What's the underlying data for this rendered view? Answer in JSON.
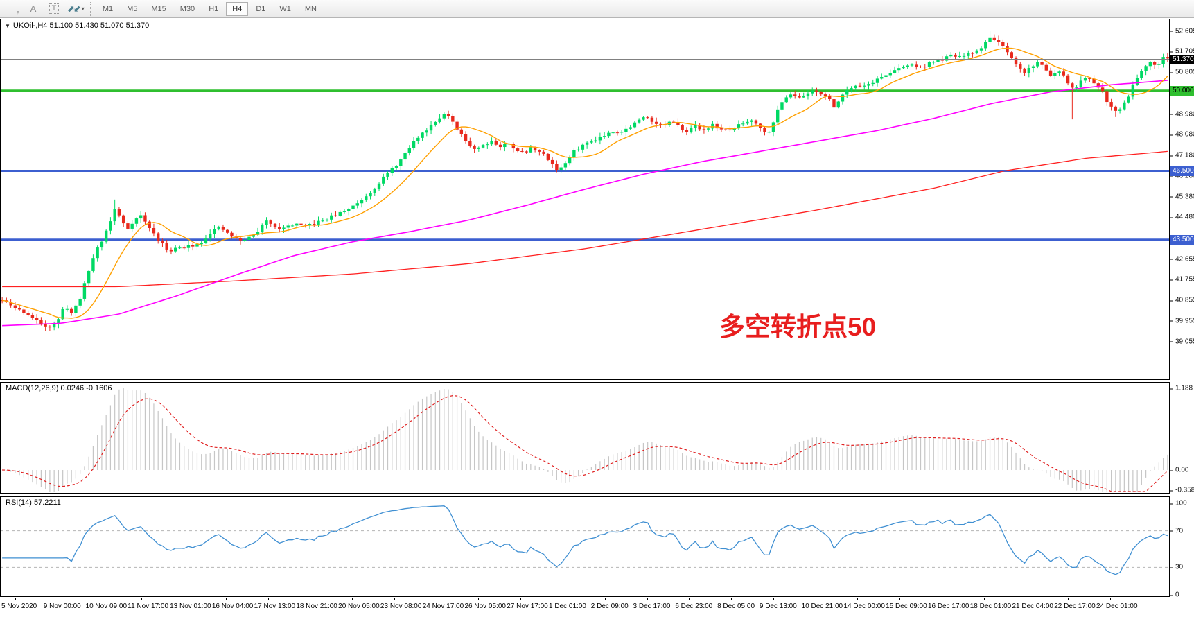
{
  "toolbar": {
    "icons": [
      {
        "name": "dotted-grid",
        "sub": "F"
      },
      {
        "name": "text-label",
        "glyph": "A"
      },
      {
        "name": "text-box",
        "glyph": "T"
      },
      {
        "name": "cycle-arrows",
        "glyph": "⬈⬋"
      },
      {
        "name": "dropdown",
        "glyph": "▾"
      }
    ],
    "timeframes": [
      "M1",
      "M5",
      "M15",
      "M30",
      "H1",
      "H4",
      "D1",
      "W1",
      "MN"
    ],
    "active_timeframe": "H4"
  },
  "header": {
    "symbol_line": "UKOil-,H4  51.100 51.430 51.070 51.370",
    "dropdown_glyph": "▼"
  },
  "annotation": {
    "text": "多空转折点50",
    "color": "#e81e1e"
  },
  "panels": {
    "macd": {
      "label": "MACD(12,26,9) 0.0246 -0.1606"
    },
    "rsi": {
      "label": "RSI(14) 57.2211"
    }
  },
  "chart_data": {
    "type": "candlestick",
    "symbol": "UKOil-",
    "timeframe": "H4",
    "ohlc_display": {
      "open": "51.100",
      "high": "51.430",
      "low": "51.070",
      "close": "51.370"
    },
    "current_price": 51.37,
    "candles": 270,
    "colors": {
      "up": "#00d964",
      "down": "#e8291d",
      "ma_fast": "#ffa000",
      "ma_mid": "#ff00ff",
      "ma_slow": "#ff2020",
      "macd_hist": "#c6c6c6",
      "macd_signal": "#e02020",
      "rsi_line": "#3f8fd2",
      "level_dash": "#b5b5b5",
      "current_line": "#808080"
    },
    "y_axis_ticks": [
      "52.605",
      "51.705",
      "50.805",
      "48.980",
      "48.080",
      "47.180",
      "46.280",
      "45.380",
      "44.480",
      "42.655",
      "41.755",
      "40.855",
      "39.955",
      "39.055"
    ],
    "hlines": [
      {
        "price": 51.37,
        "label": "51.370",
        "color": "#808080",
        "width": 1,
        "layer": "over",
        "badge_bg": "#000000",
        "badge_fg": "#ffffff"
      },
      {
        "price": 50.0,
        "label": "50.000",
        "color": "#2fbf2f",
        "width": 3,
        "layer": "under",
        "badge_bg": "#2fbf2f",
        "badge_fg": "#000000"
      },
      {
        "price": 46.5,
        "label": "46.500",
        "color": "#3c5fd0",
        "width": 3,
        "layer": "under",
        "badge_bg": "#3c5fd0",
        "badge_fg": "#ffffff"
      },
      {
        "price": 43.5,
        "label": "43.500",
        "color": "#3c5fd0",
        "width": 3,
        "layer": "under",
        "badge_bg": "#3c5fd0",
        "badge_fg": "#ffffff"
      }
    ],
    "price_path": [
      [
        0.0,
        40.85
      ],
      [
        0.01,
        40.55
      ],
      [
        0.02,
        40.3
      ],
      [
        0.031,
        39.9
      ],
      [
        0.041,
        39.7
      ],
      [
        0.048,
        39.95
      ],
      [
        0.054,
        40.65
      ],
      [
        0.06,
        40.25
      ],
      [
        0.068,
        41.1
      ],
      [
        0.074,
        42.1
      ],
      [
        0.08,
        43.0
      ],
      [
        0.086,
        43.5
      ],
      [
        0.092,
        44.2
      ],
      [
        0.097,
        44.85
      ],
      [
        0.102,
        44.4
      ],
      [
        0.107,
        43.95
      ],
      [
        0.113,
        44.35
      ],
      [
        0.119,
        44.55
      ],
      [
        0.125,
        44.1
      ],
      [
        0.131,
        43.7
      ],
      [
        0.137,
        43.3
      ],
      [
        0.143,
        43.0
      ],
      [
        0.149,
        43.15
      ],
      [
        0.155,
        43.1
      ],
      [
        0.161,
        43.25
      ],
      [
        0.168,
        43.3
      ],
      [
        0.174,
        43.55
      ],
      [
        0.18,
        43.9
      ],
      [
        0.186,
        44.0
      ],
      [
        0.192,
        43.85
      ],
      [
        0.198,
        43.6
      ],
      [
        0.204,
        43.45
      ],
      [
        0.21,
        43.55
      ],
      [
        0.216,
        43.7
      ],
      [
        0.222,
        44.05
      ],
      [
        0.228,
        44.35
      ],
      [
        0.234,
        44.1
      ],
      [
        0.24,
        43.95
      ],
      [
        0.246,
        44.1
      ],
      [
        0.252,
        44.2
      ],
      [
        0.258,
        44.05
      ],
      [
        0.264,
        44.15
      ],
      [
        0.271,
        44.25
      ],
      [
        0.278,
        44.4
      ],
      [
        0.285,
        44.55
      ],
      [
        0.292,
        44.7
      ],
      [
        0.299,
        44.9
      ],
      [
        0.306,
        45.15
      ],
      [
        0.313,
        45.45
      ],
      [
        0.32,
        45.8
      ],
      [
        0.327,
        46.2
      ],
      [
        0.334,
        46.55
      ],
      [
        0.341,
        46.9
      ],
      [
        0.348,
        47.4
      ],
      [
        0.355,
        47.9
      ],
      [
        0.362,
        48.2
      ],
      [
        0.369,
        48.55
      ],
      [
        0.375,
        48.85
      ],
      [
        0.381,
        49.0
      ],
      [
        0.387,
        48.55
      ],
      [
        0.393,
        48.1
      ],
      [
        0.399,
        47.75
      ],
      [
        0.406,
        47.45
      ],
      [
        0.413,
        47.65
      ],
      [
        0.42,
        47.8
      ],
      [
        0.427,
        47.55
      ],
      [
        0.434,
        47.7
      ],
      [
        0.441,
        47.45
      ],
      [
        0.448,
        47.25
      ],
      [
        0.455,
        47.55
      ],
      [
        0.462,
        47.3
      ],
      [
        0.469,
        47.0
      ],
      [
        0.476,
        46.55
      ],
      [
        0.483,
        46.8
      ],
      [
        0.49,
        47.3
      ],
      [
        0.497,
        47.6
      ],
      [
        0.504,
        47.75
      ],
      [
        0.511,
        47.95
      ],
      [
        0.518,
        48.1
      ],
      [
        0.525,
        48.25
      ],
      [
        0.532,
        48.2
      ],
      [
        0.539,
        48.45
      ],
      [
        0.546,
        48.7
      ],
      [
        0.553,
        48.9
      ],
      [
        0.56,
        48.6
      ],
      [
        0.567,
        48.45
      ],
      [
        0.574,
        48.65
      ],
      [
        0.581,
        48.4
      ],
      [
        0.588,
        48.25
      ],
      [
        0.595,
        48.45
      ],
      [
        0.602,
        48.3
      ],
      [
        0.609,
        48.5
      ],
      [
        0.616,
        48.35
      ],
      [
        0.623,
        48.2
      ],
      [
        0.63,
        48.45
      ],
      [
        0.637,
        48.6
      ],
      [
        0.644,
        48.75
      ],
      [
        0.651,
        48.4
      ],
      [
        0.656,
        48.05
      ],
      [
        0.661,
        48.6
      ],
      [
        0.666,
        49.2
      ],
      [
        0.672,
        49.75
      ],
      [
        0.678,
        49.9
      ],
      [
        0.684,
        49.65
      ],
      [
        0.69,
        49.85
      ],
      [
        0.696,
        50.05
      ],
      [
        0.702,
        49.9
      ],
      [
        0.708,
        49.7
      ],
      [
        0.714,
        49.3
      ],
      [
        0.72,
        49.75
      ],
      [
        0.726,
        50.1
      ],
      [
        0.732,
        50.25
      ],
      [
        0.739,
        50.2
      ],
      [
        0.746,
        50.35
      ],
      [
        0.753,
        50.55
      ],
      [
        0.76,
        50.75
      ],
      [
        0.767,
        50.9
      ],
      [
        0.774,
        51.05
      ],
      [
        0.781,
        51.15
      ],
      [
        0.788,
        51.0
      ],
      [
        0.795,
        51.2
      ],
      [
        0.802,
        51.3
      ],
      [
        0.809,
        51.4
      ],
      [
        0.816,
        51.55
      ],
      [
        0.823,
        51.45
      ],
      [
        0.83,
        51.6
      ],
      [
        0.837,
        51.75
      ],
      [
        0.843,
        52.05
      ],
      [
        0.849,
        52.35
      ],
      [
        0.854,
        52.2
      ],
      [
        0.859,
        51.85
      ],
      [
        0.865,
        51.45
      ],
      [
        0.871,
        51.05
      ],
      [
        0.877,
        50.8
      ],
      [
        0.883,
        51.05
      ],
      [
        0.889,
        51.25
      ],
      [
        0.895,
        50.95
      ],
      [
        0.901,
        50.65
      ],
      [
        0.907,
        50.85
      ],
      [
        0.913,
        50.45
      ],
      [
        0.919,
        50.05
      ],
      [
        0.925,
        50.35
      ],
      [
        0.931,
        50.55
      ],
      [
        0.937,
        50.3
      ],
      [
        0.943,
        50.1
      ],
      [
        0.949,
        49.45
      ],
      [
        0.955,
        49.1
      ],
      [
        0.961,
        49.3
      ],
      [
        0.967,
        49.85
      ],
      [
        0.973,
        50.55
      ],
      [
        0.979,
        51.0
      ],
      [
        0.985,
        51.3
      ],
      [
        0.991,
        51.1
      ],
      [
        0.996,
        51.45
      ],
      [
        1.0,
        51.37
      ]
    ],
    "long_wicks": [
      {
        "t": 0.097,
        "high": 45.25
      },
      {
        "t": 0.849,
        "high": 52.6
      },
      {
        "t": 0.919,
        "low": 48.75
      },
      {
        "t": 0.955,
        "low": 48.85
      }
    ],
    "ma_orange_period": 12,
    "ma_magenta_path": [
      [
        0.0,
        39.75
      ],
      [
        0.05,
        39.85
      ],
      [
        0.1,
        40.25
      ],
      [
        0.15,
        41.05
      ],
      [
        0.2,
        41.95
      ],
      [
        0.25,
        42.8
      ],
      [
        0.3,
        43.4
      ],
      [
        0.35,
        43.85
      ],
      [
        0.4,
        44.35
      ],
      [
        0.45,
        45.0
      ],
      [
        0.5,
        45.7
      ],
      [
        0.55,
        46.35
      ],
      [
        0.6,
        46.9
      ],
      [
        0.65,
        47.35
      ],
      [
        0.7,
        47.8
      ],
      [
        0.75,
        48.25
      ],
      [
        0.8,
        48.8
      ],
      [
        0.85,
        49.45
      ],
      [
        0.9,
        49.95
      ],
      [
        0.95,
        50.25
      ],
      [
        1.0,
        50.45
      ]
    ],
    "ma_red_path": [
      [
        0.0,
        41.45
      ],
      [
        0.1,
        41.45
      ],
      [
        0.2,
        41.7
      ],
      [
        0.3,
        42.0
      ],
      [
        0.4,
        42.45
      ],
      [
        0.5,
        43.1
      ],
      [
        0.6,
        43.95
      ],
      [
        0.7,
        44.8
      ],
      [
        0.8,
        45.75
      ],
      [
        0.86,
        46.5
      ],
      [
        0.93,
        47.05
      ],
      [
        1.0,
        47.35
      ]
    ],
    "macd": {
      "params": [
        12,
        26,
        9
      ],
      "value": 0.0246,
      "signal": -0.1606,
      "axis": [
        {
          "v": 1.188,
          "label": "1.188"
        },
        {
          "v": 0,
          "label": "0.00"
        },
        {
          "v": -0.3582,
          "label": "-0.3582"
        }
      ]
    },
    "rsi": {
      "period": 14,
      "value": 57.2211,
      "levels": [
        70,
        30
      ],
      "axis": [
        {
          "v": 100,
          "label": "100"
        },
        {
          "v": 70,
          "label": "70"
        },
        {
          "v": 30,
          "label": "30"
        },
        {
          "v": 0,
          "label": "0"
        }
      ]
    },
    "x_axis_labels": [
      "5 Nov 2020",
      "9 Nov 00:00",
      "10 Nov 09:00",
      "11 Nov 17:00",
      "13 Nov 01:00",
      "16 Nov 04:00",
      "17 Nov 13:00",
      "18 Nov 21:00",
      "20 Nov 05:00",
      "23 Nov 08:00",
      "24 Nov 17:00",
      "26 Nov 05:00",
      "27 Nov 17:00",
      "1 Dec 01:00",
      "2 Dec 09:00",
      "3 Dec 17:00",
      "6 Dec 23:00",
      "8 Dec 05:00",
      "9 Dec 13:00",
      "10 Dec 21:00",
      "14 Dec 00:00",
      "15 Dec 09:00",
      "16 Dec 17:00",
      "18 Dec 01:00",
      "21 Dec 04:00",
      "22 Dec 17:00",
      "24 Dec 01:00"
    ]
  }
}
